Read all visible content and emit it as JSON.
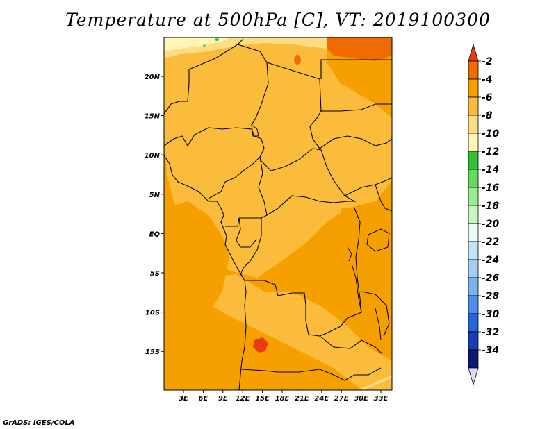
{
  "title": "Temperature at 500hPa [C], VT: 2019100300",
  "credit": "GrADS: IGES/COLA",
  "lat_labels": [
    "20N",
    "15N",
    "10N",
    "5N",
    "EQ",
    "5S",
    "10S",
    "15S"
  ],
  "lon_labels": [
    "3E",
    "6E",
    "9E",
    "12E",
    "15E",
    "18E",
    "21E",
    "24E",
    "27E",
    "30E",
    "33E"
  ],
  "colorbar": {
    "labels": [
      "-2",
      "-4",
      "-6",
      "-8",
      "-10",
      "-12",
      "-14",
      "-16",
      "-18",
      "-20",
      "-22",
      "-24",
      "-26",
      "-28",
      "-30",
      "-32",
      "-34"
    ],
    "colors": [
      "#e83c10",
      "#f26b00",
      "#f5a000",
      "#fbbc3c",
      "#fddc82",
      "#fff5b4",
      "#31c131",
      "#62dc5a",
      "#96ee90",
      "#c6f6c0",
      "#e8fbf8",
      "#bee6f8",
      "#a2cdf4",
      "#7cb2ee",
      "#4d8fe8",
      "#2466d8",
      "#1440b4",
      "#0a1a74",
      "#dcdcf0"
    ]
  }
}
